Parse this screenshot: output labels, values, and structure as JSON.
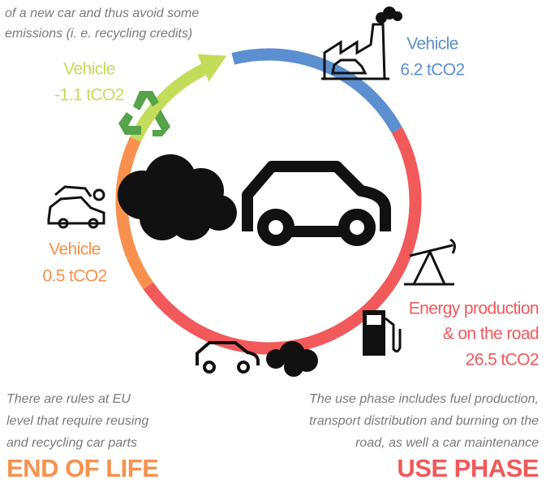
{
  "intro": {
    "lines": [
      "of a new car and thus avoid some",
      "emissions (i. e. recycling credits)"
    ]
  },
  "labels": {
    "production": {
      "title": "Vehicle",
      "value": "6.2 tCO2"
    },
    "recycling": {
      "title": "Vehicle",
      "value": "-1.1 tCO2"
    },
    "end_of_life": {
      "title": "Vehicle",
      "value": "0.5 tCO2"
    },
    "use": {
      "lines": [
        "Energy production",
        "& on the road"
      ],
      "value": "26.5 tCO2"
    }
  },
  "end_of_life": {
    "notes": [
      "There are rules at EU",
      "level that require reusing",
      "and recycling car parts"
    ],
    "title": "END OF LIFE"
  },
  "use_phase": {
    "notes": [
      "The use phase includes fuel production,",
      "transport distribution and burning on the",
      "road, as well a car maintenance"
    ],
    "title": "USE PHASE"
  }
}
